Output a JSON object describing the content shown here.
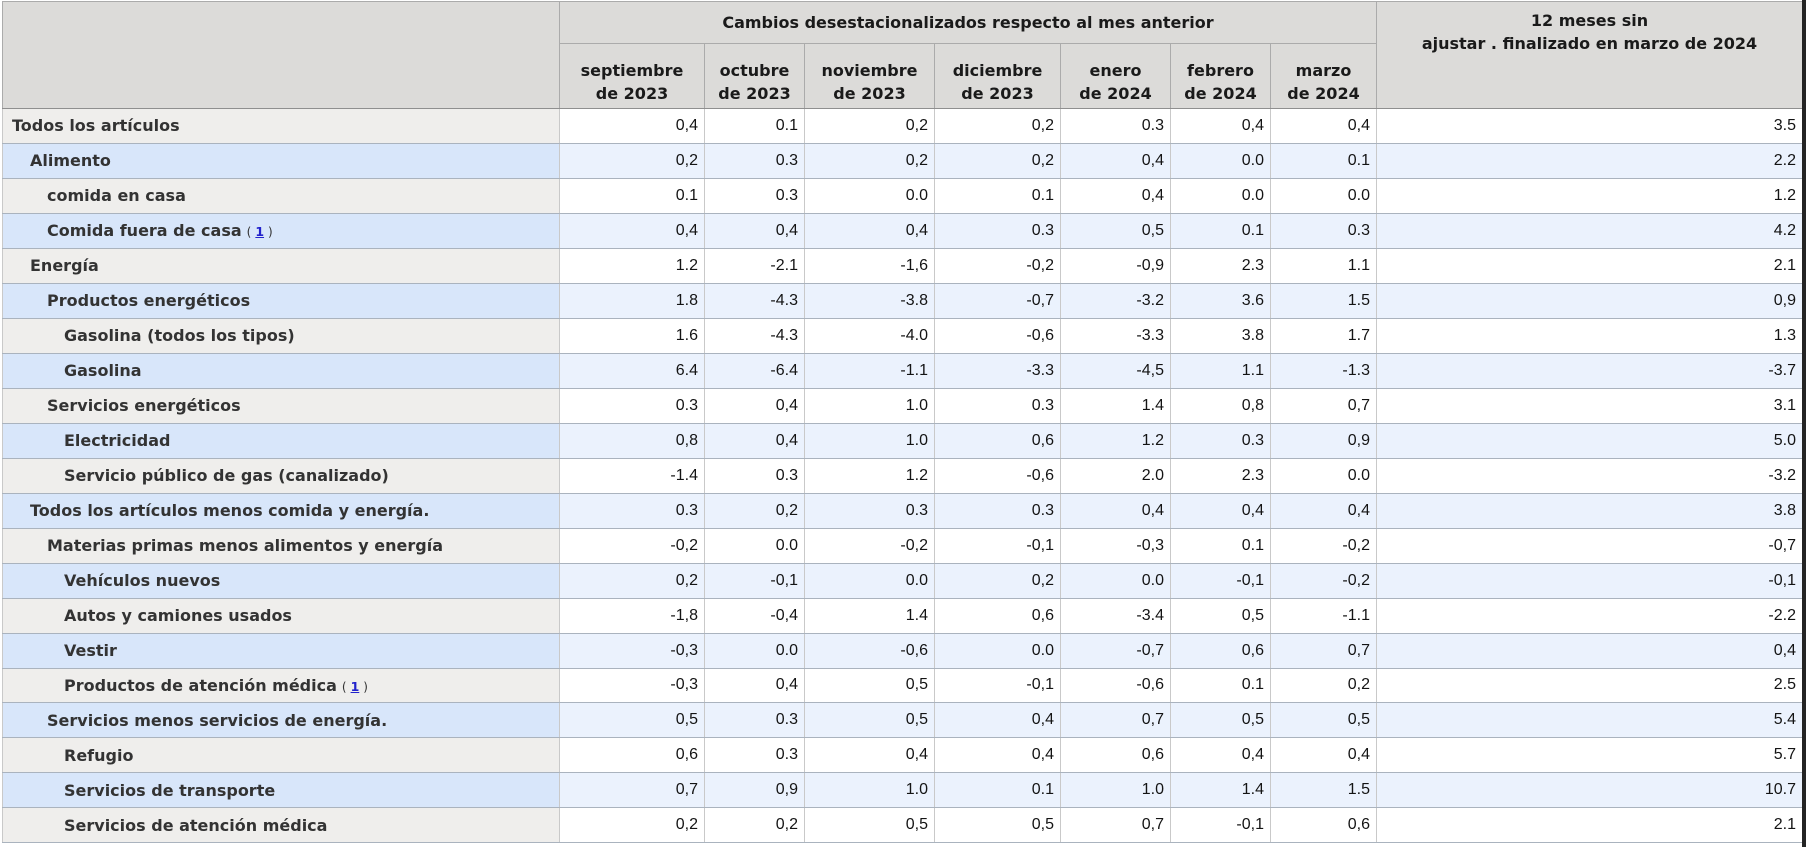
{
  "chart_data": {
    "type": "table",
    "group_header": "Cambios desestacionalizados respecto al mes anterior",
    "last_col_header_line1": "12 meses sin",
    "last_col_header_line2": "ajustar . finalizado en marzo de 2024",
    "columns": [
      {
        "line1": "septiembre",
        "line2": "de 2023"
      },
      {
        "line1": "octubre",
        "line2": "de 2023"
      },
      {
        "line1": "noviembre",
        "line2": "de 2023"
      },
      {
        "line1": "diciembre",
        "line2": "de 2023"
      },
      {
        "line1": "enero",
        "line2": "de 2024"
      },
      {
        "line1": "febrero",
        "line2": "de 2024"
      },
      {
        "line1": "marzo",
        "line2": "de 2024"
      }
    ],
    "footnote_open": "(",
    "footnote_label": "1",
    "footnote_close": ")",
    "rows": [
      {
        "label": "Todos los artículos",
        "indent": 0,
        "footnote": false,
        "values": [
          "0,4",
          "0.1",
          "0,2",
          "0,2",
          "0.3",
          "0,4",
          "0,4"
        ],
        "yr12": "3.5"
      },
      {
        "label": "Alimento",
        "indent": 1,
        "footnote": false,
        "values": [
          "0,2",
          "0.3",
          "0,2",
          "0,2",
          "0,4",
          "0.0",
          "0.1"
        ],
        "yr12": "2.2"
      },
      {
        "label": "comida en casa",
        "indent": 2,
        "footnote": false,
        "values": [
          "0.1",
          "0.3",
          "0.0",
          "0.1",
          "0,4",
          "0.0",
          "0.0"
        ],
        "yr12": "1.2"
      },
      {
        "label": "Comida fuera de casa",
        "indent": 2,
        "footnote": true,
        "values": [
          "0,4",
          "0,4",
          "0,4",
          "0.3",
          "0,5",
          "0.1",
          "0.3"
        ],
        "yr12": "4.2"
      },
      {
        "label": "Energía",
        "indent": 1,
        "footnote": false,
        "values": [
          "1.2",
          "-2.1",
          "-1,6",
          "-0,2",
          "-0,9",
          "2.3",
          "1.1"
        ],
        "yr12": "2.1"
      },
      {
        "label": "Productos energéticos",
        "indent": 2,
        "footnote": false,
        "values": [
          "1.8",
          "-4.3",
          "-3.8",
          "-0,7",
          "-3.2",
          "3.6",
          "1.5"
        ],
        "yr12": "0,9"
      },
      {
        "label": "Gasolina (todos los tipos)",
        "indent": 3,
        "footnote": false,
        "values": [
          "1.6",
          "-4.3",
          "-4.0",
          "-0,6",
          "-3.3",
          "3.8",
          "1.7"
        ],
        "yr12": "1.3"
      },
      {
        "label": "Gasolina",
        "indent": 3,
        "footnote": false,
        "values": [
          "6.4",
          "-6.4",
          "-1.1",
          "-3.3",
          "-4,5",
          "1.1",
          "-1.3"
        ],
        "yr12": "-3.7"
      },
      {
        "label": "Servicios energéticos",
        "indent": 2,
        "footnote": false,
        "values": [
          "0.3",
          "0,4",
          "1.0",
          "0.3",
          "1.4",
          "0,8",
          "0,7"
        ],
        "yr12": "3.1"
      },
      {
        "label": "Electricidad",
        "indent": 3,
        "footnote": false,
        "values": [
          "0,8",
          "0,4",
          "1.0",
          "0,6",
          "1.2",
          "0.3",
          "0,9"
        ],
        "yr12": "5.0"
      },
      {
        "label": "Servicio público de gas (canalizado)",
        "indent": 3,
        "footnote": false,
        "values": [
          "-1.4",
          "0.3",
          "1.2",
          "-0,6",
          "2.0",
          "2.3",
          "0.0"
        ],
        "yr12": "-3.2"
      },
      {
        "label": "Todos los artículos menos comida y energía.",
        "indent": 1,
        "footnote": false,
        "values": [
          "0.3",
          "0,2",
          "0.3",
          "0.3",
          "0,4",
          "0,4",
          "0,4"
        ],
        "yr12": "3.8"
      },
      {
        "label": "Materias primas menos alimentos y energía",
        "indent": 2,
        "footnote": false,
        "values": [
          "-0,2",
          "0.0",
          "-0,2",
          "-0,1",
          "-0,3",
          "0.1",
          "-0,2"
        ],
        "yr12": "-0,7"
      },
      {
        "label": "Vehículos nuevos",
        "indent": 3,
        "footnote": false,
        "values": [
          "0,2",
          "-0,1",
          "0.0",
          "0,2",
          "0.0",
          "-0,1",
          "-0,2"
        ],
        "yr12": "-0,1"
      },
      {
        "label": "Autos y camiones usados",
        "indent": 3,
        "footnote": false,
        "values": [
          "-1,8",
          "-0,4",
          "1.4",
          "0,6",
          "-3.4",
          "0,5",
          "-1.1"
        ],
        "yr12": "-2.2"
      },
      {
        "label": "Vestir",
        "indent": 3,
        "footnote": false,
        "values": [
          "-0,3",
          "0.0",
          "-0,6",
          "0.0",
          "-0,7",
          "0,6",
          "0,7"
        ],
        "yr12": "0,4"
      },
      {
        "label": "Productos de atención médica",
        "indent": 3,
        "footnote": true,
        "values": [
          "-0,3",
          "0,4",
          "0,5",
          "-0,1",
          "-0,6",
          "0.1",
          "0,2"
        ],
        "yr12": "2.5"
      },
      {
        "label": "Servicios menos servicios de energía.",
        "indent": 2,
        "footnote": false,
        "values": [
          "0,5",
          "0.3",
          "0,5",
          "0,4",
          "0,7",
          "0,5",
          "0,5"
        ],
        "yr12": "5.4"
      },
      {
        "label": "Refugio",
        "indent": 3,
        "footnote": false,
        "values": [
          "0,6",
          "0.3",
          "0,4",
          "0,4",
          "0,6",
          "0,4",
          "0,4"
        ],
        "yr12": "5.7"
      },
      {
        "label": "Servicios de transporte",
        "indent": 3,
        "footnote": false,
        "values": [
          "0,7",
          "0,9",
          "1.0",
          "0.1",
          "1.0",
          "1.4",
          "1.5"
        ],
        "yr12": "10.7"
      },
      {
        "label": "Servicios de atención médica",
        "indent": 3,
        "footnote": false,
        "values": [
          "0,2",
          "0,2",
          "0,5",
          "0,5",
          "0,7",
          "-0,1",
          "0,6"
        ],
        "yr12": "2.1"
      }
    ],
    "colors": {
      "header_bg": "#dcdbd9",
      "row_gray_label_bg": "#efeeec",
      "row_gray_data_bg": "#ffffff",
      "row_blue_label_bg": "#d8e6fa",
      "row_blue_data_bg": "#ebf2fd",
      "footnote_link_color": "#2222cc"
    }
  }
}
